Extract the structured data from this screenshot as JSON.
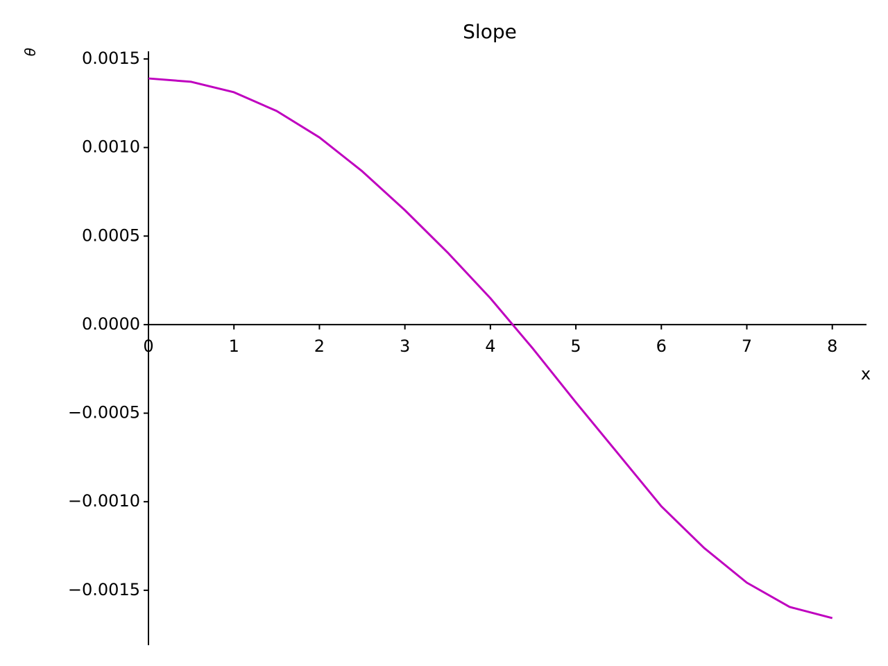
{
  "chart_data": {
    "type": "line",
    "title": "Slope",
    "xlabel": "x",
    "ylabel": "θ",
    "x": [
      0,
      0.5,
      1,
      1.5,
      2,
      2.5,
      3,
      3.5,
      4,
      4.5,
      5,
      5.5,
      6,
      6.5,
      7,
      7.5,
      8
    ],
    "values": [
      0.00139,
      0.001371,
      0.001312,
      0.001206,
      0.001057,
      0.000866,
      0.000646,
      0.000407,
      0.000149,
      -0.000137,
      -0.000439,
      -0.000732,
      -0.001026,
      -0.001261,
      -0.001457,
      -0.001594,
      -0.001657
    ],
    "color": "#bf00bf",
    "xlim": [
      0,
      8.4
    ],
    "ylim": [
      -0.00181,
      0.001543
    ],
    "xticks": [
      0,
      1,
      2,
      3,
      4,
      5,
      6,
      7,
      8
    ],
    "yticks": [
      {
        "value": -0.0015,
        "label": "−0.0015"
      },
      {
        "value": -0.001,
        "label": "−0.0010"
      },
      {
        "value": -0.0005,
        "label": "−0.0005"
      },
      {
        "value": 0,
        "label": "0.0000"
      },
      {
        "value": 0.0005,
        "label": "0.0005"
      },
      {
        "value": 0.001,
        "label": "0.0010"
      },
      {
        "value": 0.0015,
        "label": "0.0015"
      }
    ]
  }
}
